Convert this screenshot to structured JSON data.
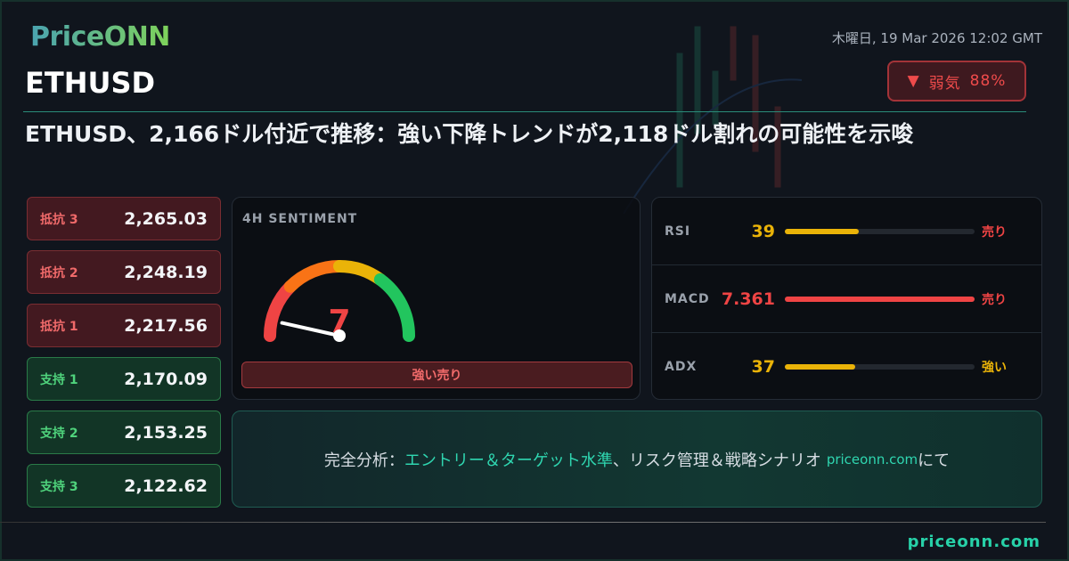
{
  "brand": {
    "logo": "PriceONN",
    "footer_url": "priceonn.com"
  },
  "header": {
    "date": "木曜日, 19 Mar 2026 12:02 GMT",
    "symbol": "ETHUSD"
  },
  "badge": {
    "icon": "triangle-down-icon",
    "label": "弱気",
    "percent": "88%",
    "color": "#ef4b4b"
  },
  "headline": "ETHUSD、2,166ドル付近で推移：強い下降トレンドが2,118ドル割れの可能性を示唆",
  "levels": [
    {
      "label": "抵抗 3",
      "value": "2,265.03",
      "type": "resistance"
    },
    {
      "label": "抵抗 2",
      "value": "2,248.19",
      "type": "resistance"
    },
    {
      "label": "抵抗 1",
      "value": "2,217.56",
      "type": "resistance"
    },
    {
      "label": "支持 1",
      "value": "2,170.09",
      "type": "support"
    },
    {
      "label": "支持 2",
      "value": "2,153.25",
      "type": "support"
    },
    {
      "label": "支持 3",
      "value": "2,122.62",
      "type": "support"
    }
  ],
  "sentiment": {
    "title": "4H SENTIMENT",
    "value": "7",
    "value_number": 7,
    "max": 100,
    "label": "強い売り",
    "colors": [
      "#ef4444",
      "#f97316",
      "#eab308",
      "#22c55e"
    ]
  },
  "indicators": [
    {
      "name": "RSI",
      "value": "39",
      "fill_percent": 39,
      "signal": "売り",
      "value_color": "#eab308",
      "bar_color": "#eab308",
      "signal_color": "#ef4444"
    },
    {
      "name": "MACD",
      "value": "7.361",
      "fill_percent": 100,
      "signal": "売り",
      "value_color": "#ef4444",
      "bar_color": "#ef4444",
      "signal_color": "#ef4444"
    },
    {
      "name": "ADX",
      "value": "37",
      "fill_percent": 37,
      "signal": "強い",
      "value_color": "#eab308",
      "bar_color": "#eab308",
      "signal_color": "#eab308"
    }
  ],
  "cta": {
    "prefix": "完全分析：",
    "highlight": "エントリー＆ターゲット水準",
    "rest": "、リスク管理＆戦略シナリオ",
    "url": "priceonn.com",
    "suffix": "にて"
  }
}
